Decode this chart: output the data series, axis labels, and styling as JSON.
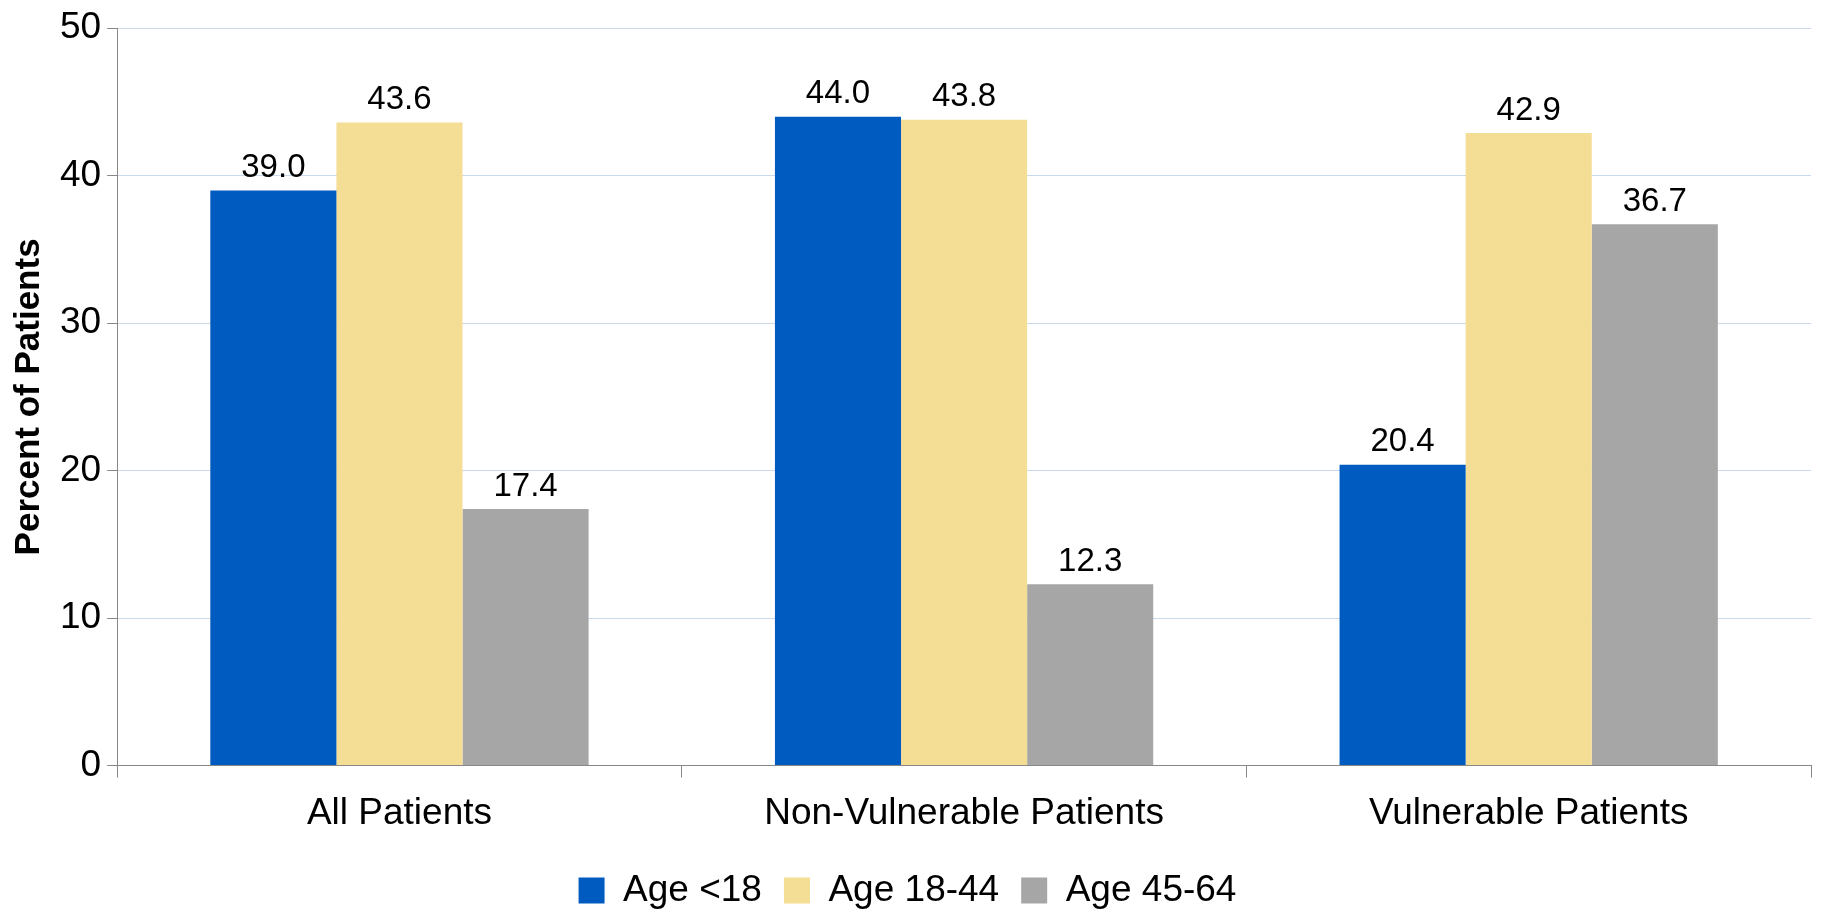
{
  "chart_data": {
    "type": "bar",
    "ylabel": "Percent of Patients",
    "categories": [
      "All Patients",
      "Non-Vulnerable Patients",
      "Vulnerable Patients"
    ],
    "series": [
      {
        "name": "Age <18",
        "color": "#005bc1",
        "values": [
          39.0,
          44.0,
          20.4
        ],
        "value_labels": [
          "39.0",
          "44.0",
          "20.4"
        ]
      },
      {
        "name": "Age 18-44",
        "color": "#f4dd94",
        "values": [
          43.6,
          43.8,
          42.9
        ],
        "value_labels": [
          "43.6",
          "43.8",
          "42.9"
        ]
      },
      {
        "name": "Age 45-64",
        "color": "#a6a6a6",
        "values": [
          17.4,
          12.3,
          36.7
        ],
        "value_labels": [
          "17.4",
          "12.3",
          "36.7"
        ]
      }
    ],
    "ylim": [
      0,
      50
    ],
    "yticks": [
      0,
      10,
      20,
      30,
      40,
      50
    ],
    "grid": "y",
    "legend": "bottom"
  }
}
